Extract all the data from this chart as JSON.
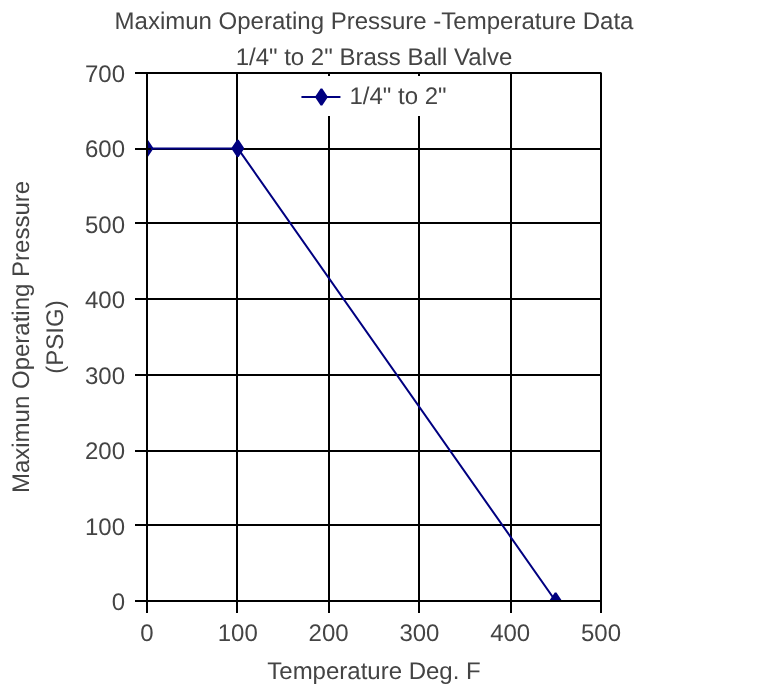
{
  "chart_data": {
    "type": "line",
    "title": "Maximun Operating Pressure -Temperature Data",
    "subtitle": "1/4\" to 2\" Brass Ball Valve",
    "xlabel": "Temperature Deg. F",
    "ylabel": "Maximun Operating Pressure\n(PSIG)",
    "x": [
      0,
      100,
      450
    ],
    "series": [
      {
        "name": "1/4\" to 2\"",
        "color": "#000080",
        "values": [
          600,
          600,
          0
        ]
      }
    ],
    "xlim": [
      0,
      500
    ],
    "xticks": [
      0,
      100,
      200,
      300,
      400,
      500
    ],
    "ylim": [
      0,
      700
    ],
    "yticks": [
      0,
      100,
      200,
      300,
      400,
      500,
      600,
      700
    ],
    "grid": true,
    "legend": "top",
    "marker": "diamond",
    "line_style": "solid"
  }
}
